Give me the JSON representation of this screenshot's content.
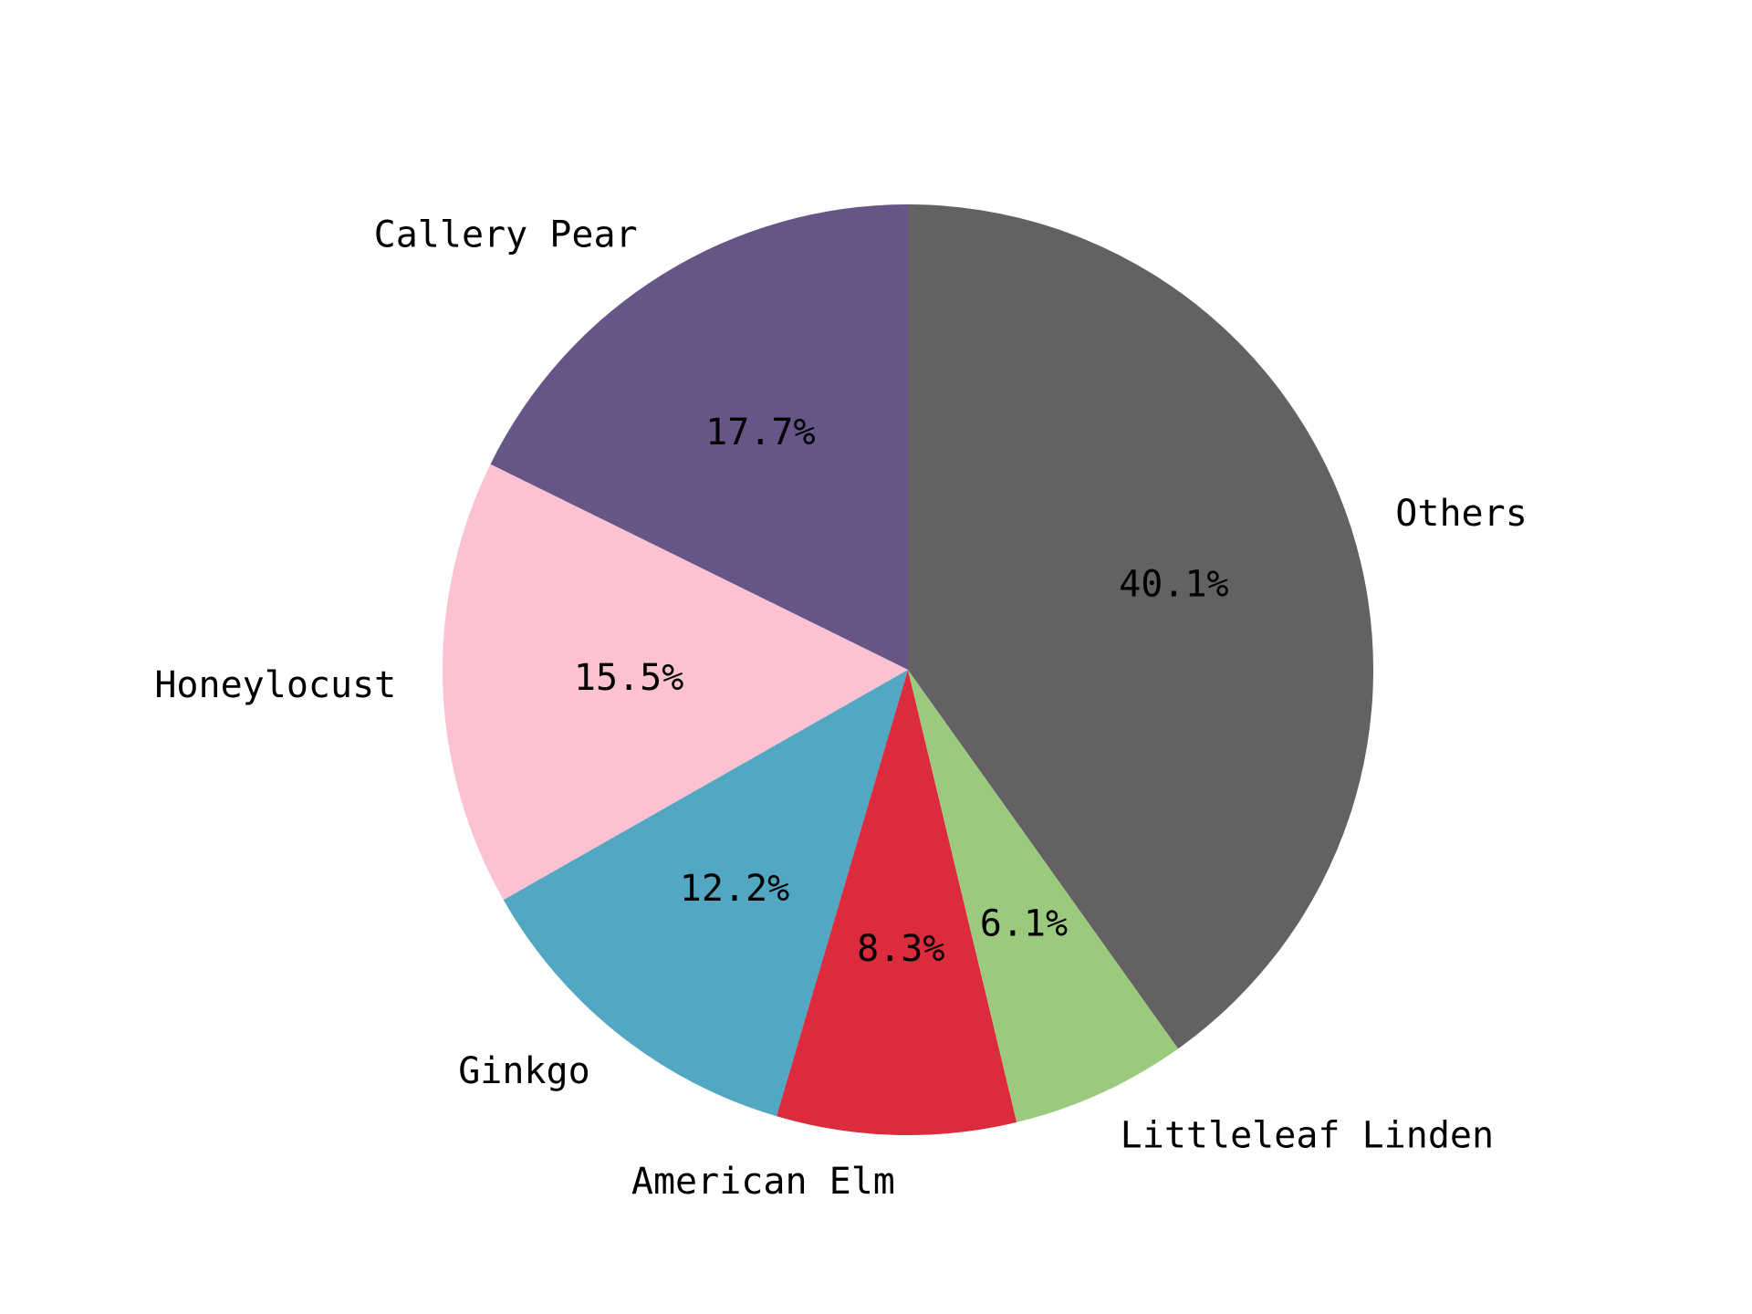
{
  "chart_data": {
    "type": "pie",
    "title": "",
    "start_angle_deg": 90,
    "direction": "counterclockwise",
    "slices": [
      {
        "label": "Callery Pear",
        "value": 17.7,
        "pct_label": "17.7%",
        "color": "#665687"
      },
      {
        "label": "Honeylocust",
        "value": 15.5,
        "pct_label": "15.5%",
        "color": "#fcc2d1"
      },
      {
        "label": "Ginkgo",
        "value": 12.2,
        "pct_label": "12.2%",
        "color": "#52a8c3"
      },
      {
        "label": "American Elm",
        "value": 8.3,
        "pct_label": "8.3%",
        "color": "#dc2b3c"
      },
      {
        "label": "Littleleaf Linden",
        "value": 6.1,
        "pct_label": "6.1%",
        "color": "#9bca7e"
      },
      {
        "label": "Others",
        "value": 40.1,
        "pct_label": "40.1%",
        "color": "#636164"
      }
    ]
  }
}
